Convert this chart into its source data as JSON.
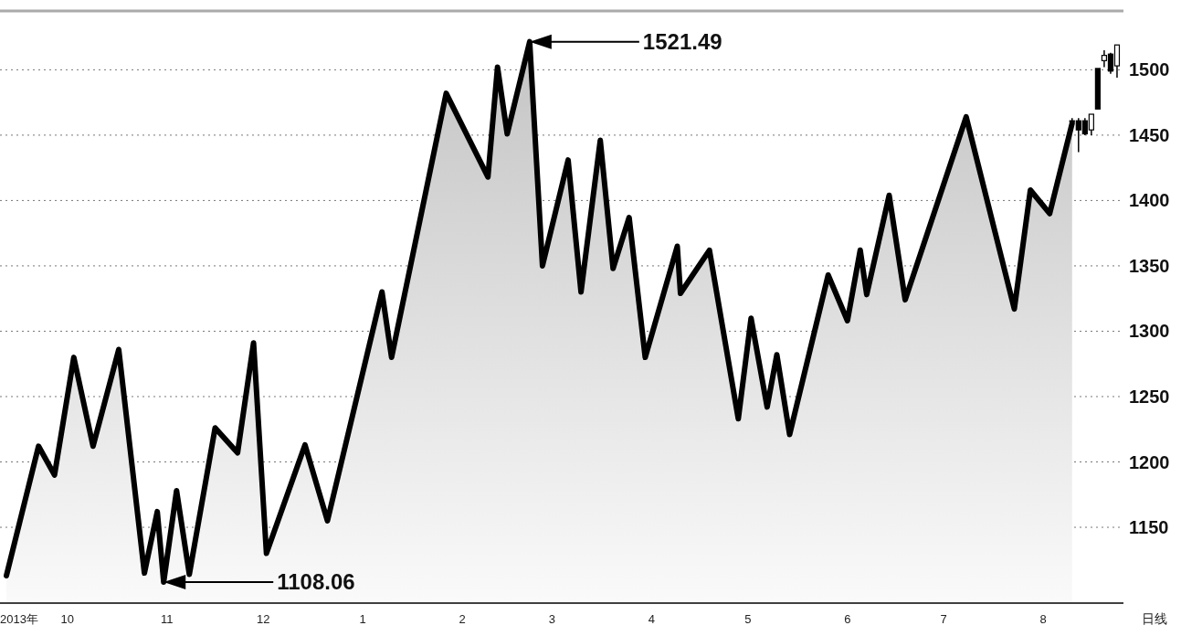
{
  "chart_data": {
    "type": "area",
    "grid": "y",
    "line_style": "solid",
    "marker": "none",
    "xlim": [
      "2013-09-10",
      "2014-08-26"
    ],
    "xticks": [
      {
        "value": "2013-09-16",
        "label": "2013年"
      },
      {
        "value": "2013-10-01",
        "label": "10"
      },
      {
        "value": "2013-11-01",
        "label": "11"
      },
      {
        "value": "2013-12-01",
        "label": "12"
      },
      {
        "value": "2014-01-01",
        "label": "1"
      },
      {
        "value": "2014-02-01",
        "label": "2"
      },
      {
        "value": "2014-03-01",
        "label": "3"
      },
      {
        "value": "2014-04-01",
        "label": "4"
      },
      {
        "value": "2014-05-01",
        "label": "5"
      },
      {
        "value": "2014-06-01",
        "label": "6"
      },
      {
        "value": "2014-07-01",
        "label": "7"
      },
      {
        "value": "2014-08-01",
        "label": "8"
      }
    ],
    "ylim": [
      1092,
      1545
    ],
    "yticks": [
      1150,
      1200,
      1250,
      1300,
      1350,
      1400,
      1450,
      1500
    ],
    "series": [
      {
        "type": "area",
        "color": "#000000",
        "x": [
          "2013-09-12",
          "2013-09-22",
          "2013-09-27",
          "2013-10-03",
          "2013-10-09",
          "2013-10-17",
          "2013-10-25",
          "2013-10-29",
          "2013-10-31",
          "2013-11-04",
          "2013-11-08",
          "2013-11-16",
          "2013-11-23",
          "2013-11-28",
          "2013-12-02",
          "2013-12-14",
          "2013-12-21",
          "2014-01-07",
          "2014-01-10",
          "2014-01-27",
          "2014-02-09",
          "2014-02-12",
          "2014-02-15",
          "2014-02-22",
          "2014-02-26",
          "2014-03-06",
          "2014-03-10",
          "2014-03-16",
          "2014-03-20",
          "2014-03-25",
          "2014-03-30",
          "2014-04-09",
          "2014-04-10",
          "2014-04-19",
          "2014-04-28",
          "2014-05-02",
          "2014-05-07",
          "2014-05-10",
          "2014-05-14",
          "2014-05-26",
          "2014-06-01",
          "2014-06-05",
          "2014-06-07",
          "2014-06-14",
          "2014-06-19",
          "2014-07-08",
          "2014-07-23",
          "2014-07-28",
          "2014-08-03",
          "2014-08-10"
        ],
        "values": [
          1113,
          1212,
          1190,
          1280,
          1212,
          1286,
          1115,
          1162,
          1108.06,
          1178,
          1114,
          1226,
          1207,
          1291,
          1130,
          1213,
          1155,
          1330,
          1280,
          1482,
          1418,
          1502,
          1451,
          1521.49,
          1350,
          1431,
          1330,
          1446,
          1348,
          1387,
          1280,
          1365,
          1329,
          1362,
          1233,
          1310,
          1242,
          1282,
          1221,
          1343,
          1308,
          1362,
          1328,
          1404,
          1324,
          1464,
          1317,
          1408,
          1390,
          1459
        ]
      },
      {
        "type": "candlestick",
        "color": "#000000",
        "x": [
          "2014-08-10",
          "2014-08-12",
          "2014-08-14",
          "2014-08-16",
          "2014-08-18",
          "2014-08-20",
          "2014-08-22",
          "2014-08-24"
        ],
        "ohlc": [
          [
            1461,
            1463,
            1459,
            1461
          ],
          [
            1461,
            1463,
            1437,
            1454
          ],
          [
            1461,
            1463,
            1450,
            1451
          ],
          [
            1454,
            1466,
            1450,
            1466
          ],
          [
            1501,
            1501,
            1470,
            1470
          ],
          [
            1507,
            1515,
            1502,
            1511
          ],
          [
            1512,
            1513,
            1497,
            1499
          ],
          [
            1503,
            1519,
            1494,
            1519
          ]
        ]
      }
    ],
    "annotations": [
      "1521.49",
      "1108.06",
      "日线"
    ]
  }
}
